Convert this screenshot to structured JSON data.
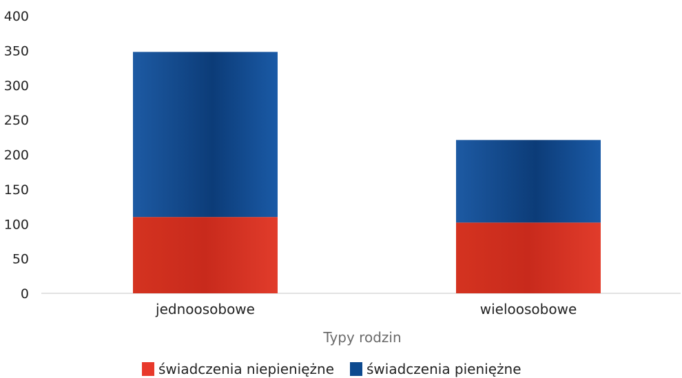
{
  "chart_data": {
    "type": "bar",
    "stacked": true,
    "categories": [
      "jednoosobowe",
      "wieloosobowe"
    ],
    "series": [
      {
        "name": "świadczenia niepieniężne",
        "values": [
          110,
          102
        ],
        "color": "#e8392b"
      },
      {
        "name": "świadczenia pieniężne",
        "values": [
          238,
          119
        ],
        "color": "#0d4a8f"
      }
    ],
    "xlabel": "Typy rodzin",
    "ylabel": "",
    "ylim": [
      0,
      400
    ],
    "yticks": [
      0,
      50,
      100,
      150,
      200,
      250,
      300,
      350,
      400
    ],
    "legend_position": "bottom-center",
    "grid": false
  }
}
